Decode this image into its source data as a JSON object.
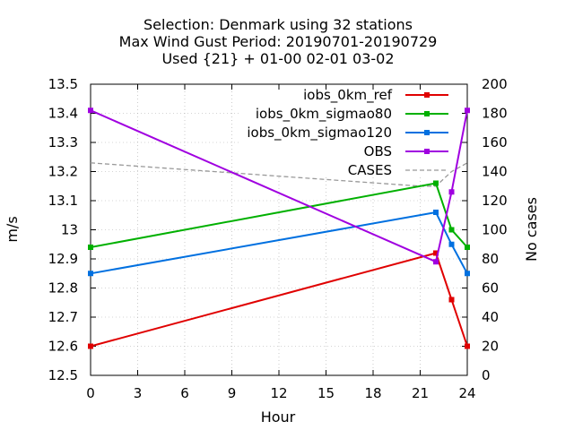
{
  "chart_data": {
    "type": "line",
    "title_lines": [
      "Selection: Denmark using    32 stations",
      "Max Wind Gust   Period: 20190701-20190729",
      "Used {21} + 01-00 02-01 03-02"
    ],
    "xlabel": "Hour",
    "ylabel": "m/s",
    "y2label": "No cases",
    "xlim": [
      0,
      24
    ],
    "ylim": [
      12.5,
      13.5
    ],
    "y2lim": [
      0,
      200
    ],
    "xticks": [
      "0",
      "3",
      "6",
      "9",
      "12",
      "15",
      "18",
      "21",
      "24"
    ],
    "yticks": [
      "12.5",
      "12.6",
      "12.7",
      "12.8",
      "12.9",
      "13",
      "13.1",
      "13.2",
      "13.3",
      "13.4",
      "13.5"
    ],
    "y2ticks": [
      "0",
      "20",
      "40",
      "60",
      "80",
      "100",
      "120",
      "140",
      "160",
      "180",
      "200"
    ],
    "x": [
      0,
      22,
      23,
      24
    ],
    "series": [
      {
        "name": "iobs_0km_ref",
        "color": "#e00000",
        "values": [
          12.6,
          12.92,
          12.76,
          12.6
        ]
      },
      {
        "name": "iobs_0km_sigmao80",
        "color": "#00b000",
        "values": [
          12.94,
          13.16,
          13.0,
          12.94
        ]
      },
      {
        "name": "iobs_0km_sigmao120",
        "color": "#0070e0",
        "values": [
          12.85,
          13.06,
          12.95,
          12.85
        ]
      },
      {
        "name": "OBS",
        "color": "#a000e0",
        "values": [
          13.41,
          12.89,
          13.13,
          13.41
        ]
      }
    ],
    "cases": {
      "name": "CASES",
      "color": "#999999",
      "x": [
        0,
        21,
        22,
        23,
        24
      ],
      "values": [
        146,
        130,
        130,
        140,
        146
      ]
    },
    "legend_position": "top-right"
  }
}
